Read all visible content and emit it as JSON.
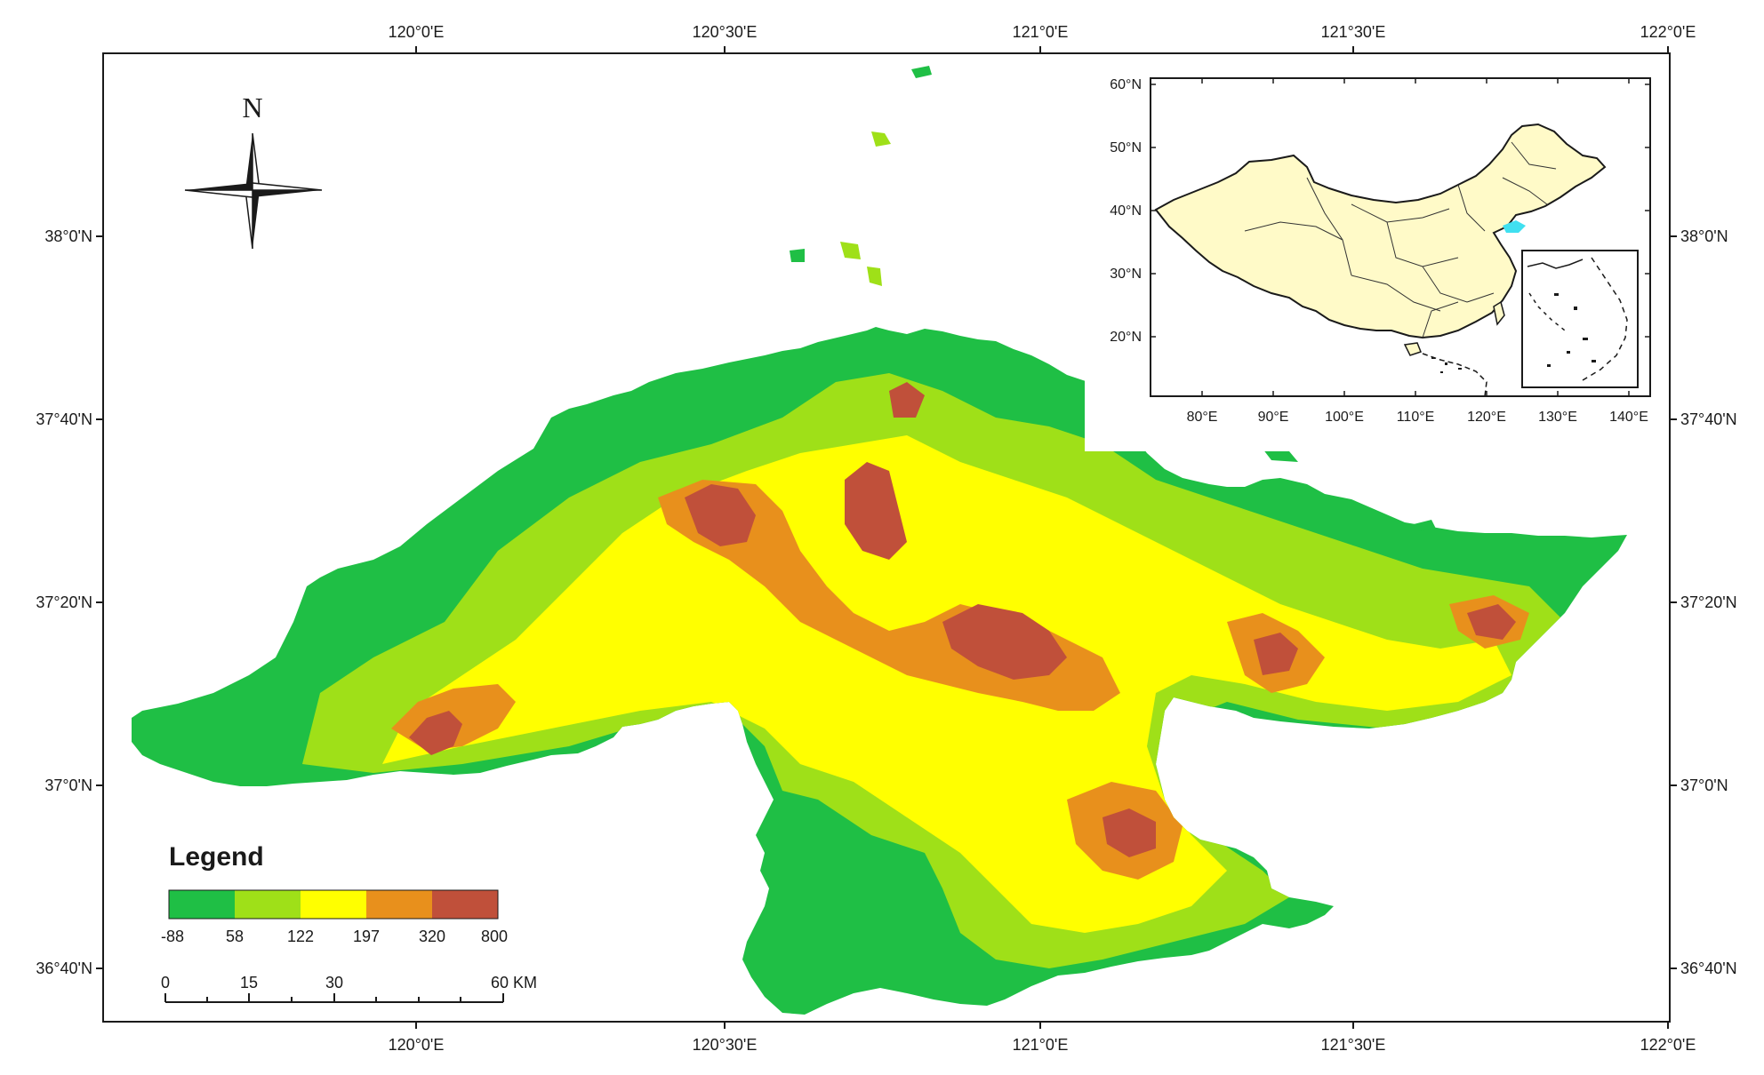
{
  "map": {
    "top_ticks": [
      "120°0'E",
      "120°30'E",
      "121°0'E",
      "121°30'E",
      "122°0'E"
    ],
    "bottom_ticks": [
      "120°0'E",
      "120°30'E",
      "121°0'E",
      "121°30'E",
      "122°0'E"
    ],
    "left_ticks": [
      "38°0'N",
      "37°40'N",
      "37°20'N",
      "37°0'N",
      "36°40'N"
    ],
    "right_ticks": [
      "38°0'N",
      "37°40'N",
      "37°20'N",
      "37°0'N",
      "36°40'N"
    ]
  },
  "north_arrow": {
    "label": "N"
  },
  "legend": {
    "title": "Legend",
    "colors": [
      "#1fbf45",
      "#9fe018",
      "#ffff00",
      "#e8901c",
      "#c0503a"
    ],
    "values": [
      "-88",
      "58",
      "122",
      "197",
      "320",
      "800"
    ]
  },
  "scale_bar": {
    "labels": [
      "0",
      "15",
      "30",
      "60 KM"
    ]
  },
  "inset": {
    "lat_ticks": [
      "60°N",
      "50°N",
      "40°N",
      "30°N",
      "20°N"
    ],
    "lon_ticks": [
      "80°E",
      "90°E",
      "100°E",
      "110°E",
      "120°E",
      "130°E",
      "140°E"
    ],
    "country_fill": "#fffac8",
    "study_area_color": "#40e0f0"
  },
  "colors": {
    "frame": "#1a1a1a",
    "sea": "#ffffff"
  }
}
